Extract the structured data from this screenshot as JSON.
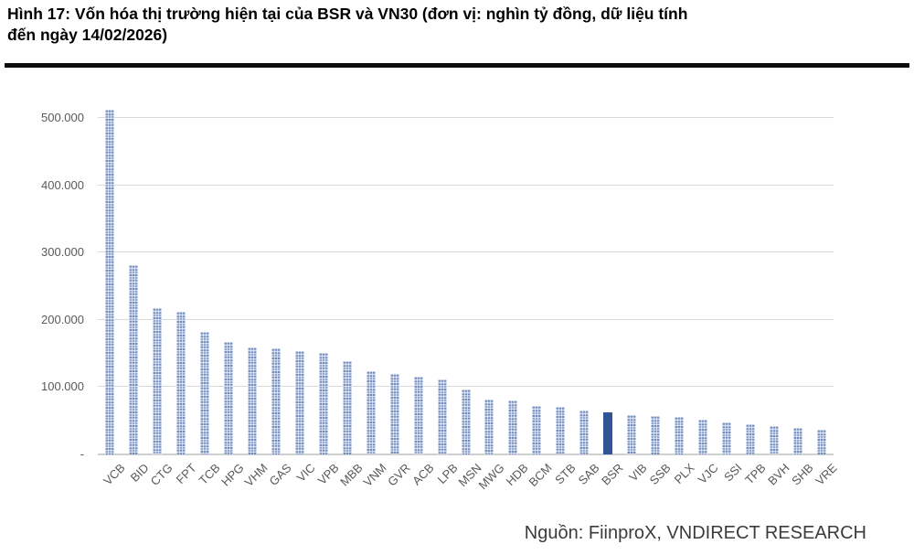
{
  "figure": {
    "title_lines": [
      "Hình 17: Vốn hóa thị trường hiện tại của BSR và VN30 (đơn vị: nghìn tỷ đồng, dữ liệu tính",
      "đến ngày 14/02/2026)"
    ]
  },
  "chart_data": {
    "type": "bar",
    "title": "Vốn hóa thị trường hiện tại của BSR và VN30",
    "unit": "nghìn tỷ đồng",
    "as_of_date": "14/02/2026",
    "categories": [
      "VCB",
      "BID",
      "CTG",
      "FPT",
      "TCB",
      "HPG",
      "VHM",
      "GAS",
      "VIC",
      "VPB",
      "MBB",
      "VNM",
      "GVR",
      "ACB",
      "LPB",
      "MSN",
      "MWG",
      "HDB",
      "BCM",
      "STB",
      "SAB",
      "BSR",
      "VIB",
      "SSB",
      "PLX",
      "VJC",
      "SSI",
      "TPB",
      "BVH",
      "SHB",
      "VRE"
    ],
    "values": [
      512000,
      281000,
      217000,
      212000,
      182000,
      167000,
      159000,
      158000,
      153000,
      151000,
      138000,
      124000,
      120000,
      115000,
      111000,
      97000,
      81000,
      80000,
      72000,
      71000,
      65000,
      62000,
      59000,
      57000,
      56000,
      52000,
      47000,
      45000,
      42000,
      40000,
      37000
    ],
    "highlight_category": "BSR",
    "y_ticks": [
      {
        "value": 0,
        "label": "-"
      },
      {
        "value": 100000,
        "label": "100.000"
      },
      {
        "value": 200000,
        "label": "200.000"
      },
      {
        "value": 300000,
        "label": "300.000"
      },
      {
        "value": 400000,
        "label": "400.000"
      },
      {
        "value": 500000,
        "label": "500.000"
      }
    ],
    "ylim": [
      0,
      523000
    ],
    "xlabel": "",
    "ylabel": "",
    "grid": "horizontal",
    "legend": "none",
    "colors": {
      "bar_pattern_base": "#93a9d4",
      "bar_highlight": "#2f5597",
      "gridline": "#d9d9d9",
      "axis_text": "#595959",
      "title_text": "#000000",
      "rule": "#0d0d0d"
    }
  },
  "source": {
    "text": "Nguồn: FiinproX, VNDIRECT RESEARCH"
  }
}
